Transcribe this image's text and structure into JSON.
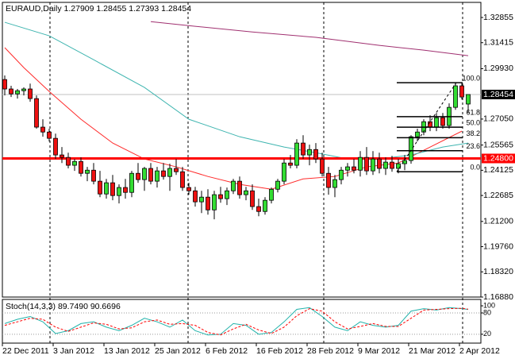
{
  "chart_data": [
    {
      "type": "candlestick",
      "title": "EURAUD,Daily  1.27909 1.28455 1.27393 1.28454",
      "categories": [
        "22 Dec 2011",
        null,
        null,
        null,
        null,
        null,
        null,
        null,
        "3 Jan 2012",
        null,
        null,
        null,
        null,
        null,
        null,
        null,
        "13 Jan 2012",
        null,
        null,
        null,
        null,
        null,
        null,
        null,
        "25 Jan 2012",
        null,
        null,
        null,
        null,
        null,
        null,
        null,
        "6 Feb 2012",
        null,
        null,
        null,
        null,
        null,
        null,
        null,
        "16 Feb 2012",
        null,
        null,
        null,
        null,
        null,
        null,
        null,
        "28 Feb 2012",
        null,
        null,
        null,
        null,
        null,
        null,
        null,
        "9 Mar 2012",
        null,
        null,
        null,
        null,
        null,
        null,
        null,
        "21 Mar 2012",
        null,
        null,
        null,
        null,
        null,
        null,
        null,
        "2 Apr 2012",
        null
      ],
      "open": [
        1.2931,
        1.2877,
        1.2849,
        1.2867,
        1.2877,
        1.2822,
        1.2659,
        1.2631,
        1.2595,
        1.25,
        1.2486,
        1.2441,
        1.2463,
        1.2395,
        1.2413,
        1.235,
        1.2277,
        1.2341,
        1.2268,
        1.2314,
        1.2286,
        1.2395,
        1.2359,
        1.2423,
        1.235,
        1.2409,
        1.2377,
        1.2423,
        1.2404,
        1.2314,
        1.2295,
        1.2232,
        1.2259,
        1.2186,
        1.2273,
        1.225,
        1.2295,
        1.235,
        1.2273,
        1.2295,
        1.2205,
        1.2177,
        1.2241,
        1.2304,
        1.235,
        1.2454,
        1.2441,
        1.2568,
        1.25,
        1.2531,
        1.2477,
        1.2395,
        1.2314,
        1.2359,
        1.2413,
        1.2432,
        1.2413,
        1.2486,
        1.2409,
        1.2477,
        1.2423,
        1.2459,
        1.2423,
        1.245,
        1.2468,
        1.2604,
        1.2631,
        1.269,
        1.2659,
        1.2713,
        1.2668,
        1.2772,
        1.2895,
        1.27909
      ],
      "high": [
        1.2954,
        1.2895,
        1.2877,
        1.2886,
        1.2908,
        1.284,
        1.2704,
        1.265,
        1.2622,
        1.2545,
        1.2513,
        1.2477,
        1.2486,
        1.2432,
        1.2454,
        1.2409,
        1.2363,
        1.2386,
        1.2332,
        1.2363,
        1.2409,
        1.2454,
        1.2432,
        1.2454,
        1.2432,
        1.2454,
        1.245,
        1.2477,
        1.2432,
        1.2341,
        1.2318,
        1.2295,
        1.2304,
        1.2295,
        1.2318,
        1.2314,
        1.2363,
        1.2377,
        1.2318,
        1.2332,
        1.225,
        1.2259,
        1.2314,
        1.2363,
        1.2477,
        1.25,
        1.259,
        1.2613,
        1.2559,
        1.2568,
        1.2513,
        1.2432,
        1.2386,
        1.2432,
        1.2454,
        1.2477,
        1.2522,
        1.2545,
        1.2522,
        1.2513,
        1.2486,
        1.2495,
        1.2477,
        1.25,
        1.2613,
        1.265,
        1.2704,
        1.2727,
        1.274,
        1.274,
        1.2795,
        1.2913,
        1.2913,
        1.28455
      ],
      "low": [
        1.284,
        1.2831,
        1.2822,
        1.284,
        1.2804,
        1.265,
        1.2604,
        1.2577,
        1.2477,
        1.2454,
        1.2423,
        1.2409,
        1.2377,
        1.235,
        1.2332,
        1.2259,
        1.225,
        1.2241,
        1.2223,
        1.225,
        1.2259,
        1.2341,
        1.2295,
        1.2332,
        1.2314,
        1.2359,
        1.2295,
        1.2386,
        1.2295,
        1.2273,
        1.2205,
        1.2168,
        1.2159,
        1.2132,
        1.2227,
        1.2214,
        1.2277,
        1.225,
        1.2241,
        1.2186,
        1.215,
        1.2159,
        1.2223,
        1.2286,
        1.2332,
        1.2423,
        1.2423,
        1.2477,
        1.2441,
        1.2454,
        1.2377,
        1.2273,
        1.2259,
        1.2332,
        1.2377,
        1.2395,
        1.2377,
        1.2386,
        1.2386,
        1.2395,
        1.2386,
        1.2404,
        1.2395,
        1.2413,
        1.245,
        1.2577,
        1.2613,
        1.2636,
        1.2636,
        1.265,
        1.265,
        1.2758,
        1.2817,
        1.27393
      ],
      "close": [
        1.2877,
        1.2849,
        1.2867,
        1.2877,
        1.2822,
        1.2659,
        1.2631,
        1.2595,
        1.25,
        1.2486,
        1.2441,
        1.2463,
        1.2395,
        1.2413,
        1.235,
        1.2277,
        1.2341,
        1.2268,
        1.2314,
        1.2286,
        1.2395,
        1.2359,
        1.2423,
        1.235,
        1.2409,
        1.2377,
        1.2423,
        1.2404,
        1.2314,
        1.2295,
        1.2232,
        1.2259,
        1.2186,
        1.2273,
        1.225,
        1.2295,
        1.235,
        1.2273,
        1.2295,
        1.2205,
        1.2177,
        1.2241,
        1.2304,
        1.235,
        1.2454,
        1.2441,
        1.2568,
        1.25,
        1.2531,
        1.2477,
        1.2395,
        1.2314,
        1.2359,
        1.2413,
        1.2432,
        1.2413,
        1.2486,
        1.2409,
        1.2477,
        1.2423,
        1.2459,
        1.2423,
        1.245,
        1.2468,
        1.2604,
        1.2631,
        1.269,
        1.2659,
        1.2713,
        1.2668,
        1.2772,
        1.2895,
        1.2831,
        1.28454
      ],
      "up_color": "#33dd33",
      "down_color": "#ee1111",
      "overlays": [
        {
          "color": "#ff2a2a",
          "x": [
            0,
            3,
            7,
            12,
            17,
            22,
            27,
            32,
            37,
            42,
            47,
            52,
            57,
            62,
            67,
            72
          ],
          "values": [
            1.3113,
            1.2999,
            1.2863,
            1.2704,
            1.2568,
            1.2477,
            1.2432,
            1.2377,
            1.2332,
            1.2304,
            1.2363,
            1.2377,
            1.2432,
            1.2454,
            1.2545,
            1.2636
          ]
        },
        {
          "color": "#3fb5b0",
          "x": [
            0,
            7,
            14,
            22,
            29,
            37,
            44,
            49,
            54,
            59,
            64,
            69,
            73
          ],
          "values": [
            1.3258,
            1.3181,
            1.3044,
            1.2886,
            1.2704,
            1.2604,
            1.2545,
            1.2513,
            1.2477,
            1.2477,
            1.25,
            1.2545,
            1.2568
          ]
        },
        {
          "color": "#a03070",
          "x": [
            23,
            30,
            39,
            49,
            59,
            66,
            73
          ],
          "values": [
            1.3262,
            1.3235,
            1.3203,
            1.3172,
            1.3126,
            1.3099,
            1.3067
          ]
        }
      ],
      "hline": {
        "value": 1.248,
        "label": "1.24800",
        "color": "#ff0000"
      },
      "last_price": 1.28454,
      "fib": {
        "low": 1.2404,
        "high": 1.2913,
        "levels": [
          {
            "value": 100,
            "label": "100.0"
          },
          {
            "value": 61.8,
            "label": "61.8"
          },
          {
            "value": 50,
            "label": "50.0"
          },
          {
            "value": 38.2,
            "label": "38.2"
          },
          {
            "value": 23.6,
            "label": "23.6"
          },
          {
            "value": 0,
            "label": "0.0"
          }
        ]
      },
      "ylim": [
        1.1688,
        1.33718
      ],
      "yticks": [
        1.32855,
        1.31415,
        {
          "value": 1.2993,
          "label": "1.29930"
        },
        {
          "value": 1.2705,
          "label": "1.27050"
        },
        1.25565,
        1.24125,
        1.22685,
        {
          "value": 1.212,
          "label": "1.21200"
        },
        {
          "value": 1.1976,
          "label": "1.19760"
        },
        {
          "value": 1.1832,
          "label": "1.18320"
        },
        {
          "value": 1.1688,
          "label": "1.16880"
        }
      ]
    },
    {
      "type": "line",
      "title": "Stoch(14,3,3) 89.7490 90.6696",
      "series": [
        {
          "color": "#20b2aa",
          "dash": false,
          "x": [
            0,
            2,
            4,
            6,
            8,
            10,
            12,
            14,
            16,
            18,
            20,
            22,
            24,
            26,
            28,
            30,
            32,
            34,
            36,
            38,
            40,
            42,
            44,
            46,
            48,
            50,
            52,
            54,
            56,
            58,
            60,
            62,
            64,
            66,
            68,
            70,
            72,
            73
          ],
          "values": [
            50,
            62,
            70,
            55,
            22,
            30,
            50,
            55,
            40,
            30,
            45,
            65,
            55,
            40,
            60,
            30,
            18,
            20,
            50,
            45,
            20,
            25,
            55,
            90,
            95,
            70,
            40,
            30,
            55,
            45,
            40,
            45,
            85,
            92,
            88,
            95,
            92,
            89.749
          ]
        },
        {
          "color": "#ff0000",
          "dash": true,
          "x": [
            0,
            2,
            4,
            6,
            8,
            10,
            12,
            14,
            16,
            18,
            20,
            22,
            24,
            26,
            28,
            30,
            32,
            34,
            36,
            38,
            40,
            42,
            44,
            46,
            48,
            50,
            52,
            54,
            56,
            58,
            60,
            62,
            64,
            66,
            68,
            70,
            72,
            73
          ],
          "values": [
            45,
            55,
            65,
            62,
            40,
            28,
            40,
            52,
            48,
            35,
            38,
            55,
            60,
            48,
            50,
            45,
            25,
            18,
            35,
            48,
            32,
            22,
            40,
            72,
            92,
            85,
            55,
            35,
            42,
            50,
            42,
            42,
            65,
            88,
            90,
            92,
            93,
            90.6696
          ]
        }
      ],
      "ylim": [
        -5,
        118
      ],
      "yticks": [
        100,
        80,
        20
      ],
      "levels": [
        80,
        20
      ]
    }
  ]
}
